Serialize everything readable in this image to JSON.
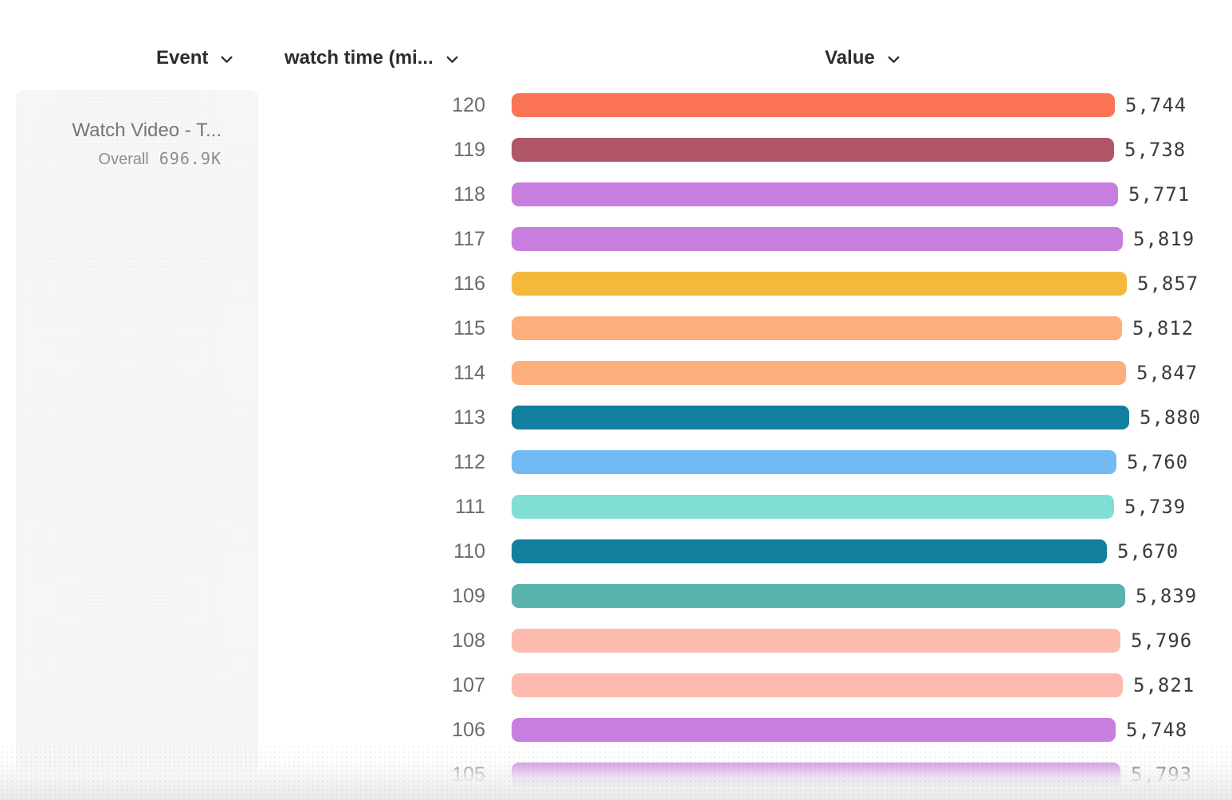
{
  "header": {
    "columns": [
      {
        "id": "event",
        "label": "Event"
      },
      {
        "id": "watch-time",
        "label": "watch time (mi..."
      },
      {
        "id": "value",
        "label": "Value"
      }
    ]
  },
  "event_panel": {
    "title": "Watch Video - T...",
    "segment_label": "Overall",
    "segment_value": "696.9K"
  },
  "chart_data": {
    "type": "bar",
    "orientation": "horizontal",
    "title": "",
    "xlabel": "Value",
    "ylabel": "watch time (mi...)",
    "xlim": [
      0,
      5880
    ],
    "grid": false,
    "legend": "none",
    "categories": [
      120,
      119,
      118,
      117,
      116,
      115,
      114,
      113,
      112,
      111,
      110,
      109,
      108,
      107,
      106,
      105
    ],
    "values": [
      5744,
      5738,
      5771,
      5819,
      5857,
      5812,
      5847,
      5880,
      5760,
      5739,
      5670,
      5839,
      5796,
      5821,
      5748,
      5793
    ],
    "bar_colors": [
      "#fb7355",
      "#b15669",
      "#c87ede",
      "#c87ede",
      "#f4b93c",
      "#fcae7b",
      "#fcae7b",
      "#11809e",
      "#73baf2",
      "#7fdfd3",
      "#11809e",
      "#58b3ad",
      "#fdbbb0",
      "#fdbbb0",
      "#c87ede",
      "#c87ede"
    ]
  },
  "colors": {
    "header_text": "#2d2d2d",
    "row_label_text": "#6a6a6a",
    "value_text": "#3a3a3c",
    "panel_bg": "#f7f7f7",
    "panel_title_text": "#757575",
    "panel_sub_text": "#8e8e8e"
  }
}
